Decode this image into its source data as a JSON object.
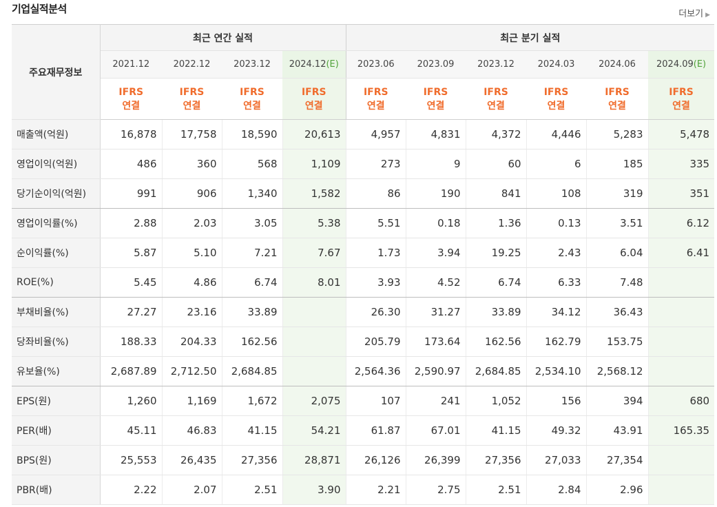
{
  "header": {
    "title": "기업실적분석",
    "more_label": "더보기"
  },
  "table": {
    "corner_label": "주요재무정보",
    "annual_group": "최근 연간 실적",
    "quarter_group": "최근 분기 실적",
    "periods": [
      {
        "label": "2021.12",
        "tag": ""
      },
      {
        "label": "2022.12",
        "tag": ""
      },
      {
        "label": "2023.12",
        "tag": ""
      },
      {
        "label": "2024.12",
        "tag": "(E)"
      },
      {
        "label": "2023.06",
        "tag": ""
      },
      {
        "label": "2023.09",
        "tag": ""
      },
      {
        "label": "2023.12",
        "tag": ""
      },
      {
        "label": "2024.03",
        "tag": ""
      },
      {
        "label": "2024.06",
        "tag": ""
      },
      {
        "label": "2024.09",
        "tag": "(E)"
      }
    ],
    "ifrs_line1": "IFRS",
    "ifrs_line2": "연결",
    "rows": [
      {
        "label": "매출액(억원)",
        "values": [
          "16,878",
          "17,758",
          "18,590",
          "20,613",
          "4,957",
          "4,831",
          "4,372",
          "4,446",
          "5,283",
          "5,478"
        ]
      },
      {
        "label": "영업이익(억원)",
        "values": [
          "486",
          "360",
          "568",
          "1,109",
          "273",
          "9",
          "60",
          "6",
          "185",
          "335"
        ]
      },
      {
        "label": "당기순이익(억원)",
        "values": [
          "991",
          "906",
          "1,340",
          "1,582",
          "86",
          "190",
          "841",
          "108",
          "319",
          "351"
        ]
      },
      {
        "label": "영업이익률(%)",
        "values": [
          "2.88",
          "2.03",
          "3.05",
          "5.38",
          "5.51",
          "0.18",
          "1.36",
          "0.13",
          "3.51",
          "6.12"
        ]
      },
      {
        "label": "순이익률(%)",
        "values": [
          "5.87",
          "5.10",
          "7.21",
          "7.67",
          "1.73",
          "3.94",
          "19.25",
          "2.43",
          "6.04",
          "6.41"
        ]
      },
      {
        "label": "ROE(%)",
        "values": [
          "5.45",
          "4.86",
          "6.74",
          "8.01",
          "3.93",
          "4.52",
          "6.74",
          "6.33",
          "7.48",
          ""
        ]
      },
      {
        "label": "부채비율(%)",
        "values": [
          "27.27",
          "23.16",
          "33.89",
          "",
          "26.30",
          "31.27",
          "33.89",
          "34.12",
          "36.43",
          ""
        ]
      },
      {
        "label": "당좌비율(%)",
        "values": [
          "188.33",
          "204.33",
          "162.56",
          "",
          "205.79",
          "173.64",
          "162.56",
          "162.79",
          "153.75",
          ""
        ]
      },
      {
        "label": "유보율(%)",
        "values": [
          "2,687.89",
          "2,712.50",
          "2,684.85",
          "",
          "2,564.36",
          "2,590.97",
          "2,684.85",
          "2,534.10",
          "2,568.12",
          ""
        ]
      },
      {
        "label": "EPS(원)",
        "values": [
          "1,260",
          "1,169",
          "1,672",
          "2,075",
          "107",
          "241",
          "1,052",
          "156",
          "394",
          "680"
        ]
      },
      {
        "label": "PER(배)",
        "values": [
          "45.11",
          "46.83",
          "41.15",
          "54.21",
          "61.87",
          "67.01",
          "41.15",
          "49.32",
          "43.91",
          "165.35"
        ]
      },
      {
        "label": "BPS(원)",
        "values": [
          "25,553",
          "26,435",
          "27,356",
          "28,871",
          "26,126",
          "26,399",
          "27,356",
          "27,033",
          "27,354",
          ""
        ]
      },
      {
        "label": "PBR(배)",
        "values": [
          "2.22",
          "2.07",
          "2.51",
          "3.90",
          "2.21",
          "2.75",
          "2.51",
          "2.84",
          "2.96",
          ""
        ]
      }
    ]
  },
  "colors": {
    "ifrs_orange": "#f06c2c",
    "estimate_green": "#52a33c",
    "estimate_bg": "#f1f8ee"
  }
}
